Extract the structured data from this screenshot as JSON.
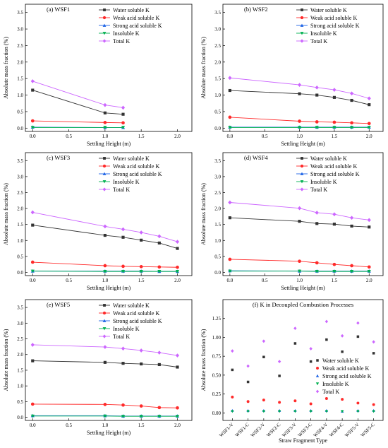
{
  "figure": {
    "panels": [
      {
        "id": "a",
        "title": "(a) WSF1",
        "xlabel": "Settling Height (m)",
        "ylabel": "Absolute mass fraction (%)"
      },
      {
        "id": "b",
        "title": "(b) WSF2",
        "xlabel": "Settling Height (m)",
        "ylabel": "Absolute mass fraction (%)"
      },
      {
        "id": "c",
        "title": "(c) WSF3",
        "xlabel": "Settling Height (m)",
        "ylabel": "Absolute mass fraction (%)"
      },
      {
        "id": "d",
        "title": "(d) WSF4",
        "xlabel": "Settling Height (m)",
        "ylabel": "Absolute mass fraction (%)"
      },
      {
        "id": "e",
        "title": "(e) WSF5",
        "xlabel": "Settling Height (m)",
        "ylabel": "Absolute mass fraction (%)"
      },
      {
        "id": "f",
        "title": "(f) K in Decoupled Combustion Processes",
        "xlabel": "Straw Fragment Type",
        "ylabel": "Absolute mass fraction (%)"
      }
    ]
  },
  "chart_data": [
    {
      "type": "line",
      "title": "(a) WSF1",
      "xlabel": "Settling Height (m)",
      "ylabel": "Absolute mass fraction (%)",
      "xlim": [
        -0.1,
        2.2
      ],
      "ylim": [
        -0.1,
        3.75
      ],
      "xticks": [
        "0.0",
        "0.5",
        "1.0",
        "1.5",
        "2.0"
      ],
      "yticks": [
        "0.0",
        "0.5",
        "1.0",
        "1.5",
        "2.0",
        "2.5",
        "3.0",
        "3.5"
      ],
      "legend": "top-right",
      "grid": false,
      "x": [
        0,
        1.0,
        1.25
      ],
      "series": [
        {
          "name": "Water soluble K",
          "color": "#333333",
          "marker": "square",
          "values": [
            1.15,
            0.46,
            0.42
          ]
        },
        {
          "name": "Weak acid soluble K",
          "color": "#ff2a2a",
          "marker": "circle",
          "values": [
            0.22,
            0.17,
            0.16
          ]
        },
        {
          "name": "Strong acid soluble K",
          "color": "#1e64e6",
          "marker": "triangle-up",
          "values": [
            0.03,
            0.02,
            0.02
          ]
        },
        {
          "name": "Insoluble K",
          "color": "#00b050",
          "marker": "triangle-down",
          "values": [
            0.02,
            0.02,
            0.02
          ]
        },
        {
          "name": "Total K",
          "color": "#cc66ff",
          "marker": "diamond",
          "values": [
            1.42,
            0.7,
            0.62
          ]
        }
      ]
    },
    {
      "type": "line",
      "title": "(b) WSF2",
      "xlabel": "Settling Height (m)",
      "ylabel": "Absolute mass fraction (%)",
      "xlim": [
        -0.1,
        2.2
      ],
      "ylim": [
        -0.1,
        3.75
      ],
      "xticks": [
        "0.0",
        "0.5",
        "1.0",
        "1.5",
        "2.0"
      ],
      "yticks": [
        "0.0",
        "0.5",
        "1.0",
        "1.5",
        "2.0",
        "2.5",
        "3.0",
        "3.5"
      ],
      "legend": "top-right",
      "grid": false,
      "x": [
        0,
        1.0,
        1.25,
        1.5,
        1.75,
        2.0
      ],
      "series": [
        {
          "name": "Water soluble K",
          "color": "#333333",
          "marker": "square",
          "values": [
            1.14,
            1.04,
            1.0,
            0.93,
            0.84,
            0.71
          ]
        },
        {
          "name": "Weak acid soluble K",
          "color": "#ff2a2a",
          "marker": "circle",
          "values": [
            0.33,
            0.21,
            0.19,
            0.18,
            0.16,
            0.14
          ]
        },
        {
          "name": "Strong acid soluble K",
          "color": "#1e64e6",
          "marker": "triangle-up",
          "values": [
            0.03,
            0.03,
            0.03,
            0.03,
            0.03,
            0.03
          ]
        },
        {
          "name": "Insoluble K",
          "color": "#00b050",
          "marker": "triangle-down",
          "values": [
            0.02,
            0.02,
            0.02,
            0.02,
            0.02,
            0.02
          ]
        },
        {
          "name": "Total K",
          "color": "#cc66ff",
          "marker": "diamond",
          "values": [
            1.52,
            1.31,
            1.23,
            1.16,
            1.05,
            0.9
          ]
        }
      ]
    },
    {
      "type": "line",
      "title": "(c) WSF3",
      "xlabel": "Settling Height (m)",
      "ylabel": "Absolute mass fraction (%)",
      "xlim": [
        -0.1,
        2.2
      ],
      "ylim": [
        -0.1,
        3.75
      ],
      "xticks": [
        "0.0",
        "0.5",
        "1.0",
        "1.5",
        "2.0"
      ],
      "yticks": [
        "0.0",
        "0.5",
        "1.0",
        "1.5",
        "2.0",
        "2.5",
        "3.0",
        "3.5"
      ],
      "legend": "top-right",
      "grid": false,
      "x": [
        0,
        1.0,
        1.25,
        1.5,
        1.75,
        2.0
      ],
      "series": [
        {
          "name": "Water soluble K",
          "color": "#333333",
          "marker": "square",
          "values": [
            1.48,
            1.16,
            1.1,
            1.01,
            0.92,
            0.75
          ]
        },
        {
          "name": "Weak acid soluble K",
          "color": "#ff2a2a",
          "marker": "circle",
          "values": [
            0.32,
            0.21,
            0.19,
            0.18,
            0.17,
            0.16
          ]
        },
        {
          "name": "Strong acid soluble K",
          "color": "#1e64e6",
          "marker": "triangle-up",
          "values": [
            0.04,
            0.04,
            0.04,
            0.04,
            0.03,
            0.03
          ]
        },
        {
          "name": "Insoluble K",
          "color": "#00b050",
          "marker": "triangle-down",
          "values": [
            0.04,
            0.03,
            0.03,
            0.03,
            0.03,
            0.03
          ]
        },
        {
          "name": "Total K",
          "color": "#cc66ff",
          "marker": "diamond",
          "values": [
            1.88,
            1.44,
            1.35,
            1.25,
            1.13,
            0.96
          ]
        }
      ]
    },
    {
      "type": "line",
      "title": "(d) WSF4",
      "xlabel": "Settling Height (m)",
      "ylabel": "Absolute mass fraction (%)",
      "xlim": [
        -0.1,
        2.2
      ],
      "ylim": [
        -0.1,
        3.75
      ],
      "xticks": [
        "0.0",
        "0.5",
        "1.0",
        "1.5",
        "2.0"
      ],
      "yticks": [
        "0.0",
        "0.5",
        "1.0",
        "1.5",
        "2.0",
        "2.5",
        "3.0",
        "3.5"
      ],
      "legend": "top-right",
      "grid": false,
      "x": [
        0,
        1.0,
        1.25,
        1.5,
        1.75,
        2.0
      ],
      "series": [
        {
          "name": "Water soluble K",
          "color": "#333333",
          "marker": "square",
          "values": [
            1.71,
            1.6,
            1.53,
            1.51,
            1.45,
            1.42
          ]
        },
        {
          "name": "Weak acid soluble K",
          "color": "#ff2a2a",
          "marker": "circle",
          "values": [
            0.41,
            0.35,
            0.3,
            0.25,
            0.21,
            0.17
          ]
        },
        {
          "name": "Strong acid soluble K",
          "color": "#1e64e6",
          "marker": "triangle-up",
          "values": [
            0.05,
            0.04,
            0.04,
            0.04,
            0.04,
            0.04
          ]
        },
        {
          "name": "Insoluble K",
          "color": "#00b050",
          "marker": "triangle-down",
          "values": [
            0.04,
            0.04,
            0.03,
            0.03,
            0.03,
            0.03
          ]
        },
        {
          "name": "Total K",
          "color": "#cc66ff",
          "marker": "diamond",
          "values": [
            2.19,
            2.01,
            1.87,
            1.82,
            1.71,
            1.64
          ]
        }
      ]
    },
    {
      "type": "line",
      "title": "(e) WSF5",
      "xlabel": "Settling Height (m)",
      "ylabel": "Absolute mass fraction (%)",
      "xlim": [
        -0.1,
        2.2
      ],
      "ylim": [
        -0.1,
        3.75
      ],
      "xticks": [
        "0.0",
        "0.5",
        "1.0",
        "1.5",
        "2.0"
      ],
      "yticks": [
        "0.0",
        "0.5",
        "1.0",
        "1.5",
        "2.0",
        "2.5",
        "3.0",
        "3.5"
      ],
      "legend": "top-right",
      "grid": false,
      "x": [
        0,
        1.0,
        1.25,
        1.5,
        1.75,
        2.0
      ],
      "series": [
        {
          "name": "Water soluble K",
          "color": "#333333",
          "marker": "square",
          "values": [
            1.8,
            1.75,
            1.72,
            1.7,
            1.68,
            1.6
          ]
        },
        {
          "name": "Weak acid soluble K",
          "color": "#ff2a2a",
          "marker": "circle",
          "values": [
            0.42,
            0.41,
            0.39,
            0.36,
            0.31,
            0.3
          ]
        },
        {
          "name": "Strong acid soluble K",
          "color": "#1e64e6",
          "marker": "triangle-up",
          "values": [
            0.05,
            0.05,
            0.04,
            0.04,
            0.04,
            0.04
          ]
        },
        {
          "name": "Insoluble K",
          "color": "#00b050",
          "marker": "triangle-down",
          "values": [
            0.04,
            0.04,
            0.03,
            0.03,
            0.03,
            0.03
          ]
        },
        {
          "name": "Total K",
          "color": "#cc66ff",
          "marker": "diamond",
          "values": [
            2.31,
            2.24,
            2.19,
            2.13,
            2.06,
            1.97
          ]
        }
      ]
    },
    {
      "type": "scatter",
      "title": "(f) K in Decoupled Combustion Processes",
      "xlabel": "Straw Fragment Type",
      "ylabel": "Absolute mass fraction (%)",
      "ylim": [
        -0.1,
        1.5
      ],
      "yticks": [
        "0.00",
        "0.25",
        "0.50",
        "0.75",
        "1.00",
        "1.25"
      ],
      "legend": "bottom-right",
      "grid": false,
      "categories": [
        "WSF1-V",
        "WSF1-C",
        "WSF2-V",
        "WSF2-C",
        "WSF3-V",
        "WSF3-C",
        "WSF4-V",
        "WSF4-C",
        "WSF5-V",
        "WSF5-C"
      ],
      "series": [
        {
          "name": "Water soluble K",
          "color": "#333333",
          "marker": "square",
          "values": [
            0.57,
            0.41,
            0.74,
            0.49,
            0.92,
            0.68,
            0.97,
            0.81,
            1.01,
            0.79
          ]
        },
        {
          "name": "Weak acid soluble K",
          "color": "#ff2a2a",
          "marker": "circle",
          "values": [
            0.21,
            0.15,
            0.17,
            0.14,
            0.16,
            0.12,
            0.19,
            0.18,
            0.13,
            0.11
          ]
        },
        {
          "name": "Strong acid soluble K",
          "color": "#1e64e6",
          "marker": "triangle-up",
          "values": [
            0.03,
            0.03,
            0.03,
            0.03,
            0.03,
            0.03,
            0.03,
            0.02,
            0.03,
            0.03
          ]
        },
        {
          "name": "Insoluble K",
          "color": "#00b050",
          "marker": "triangle-down",
          "values": [
            0.02,
            0.02,
            0.02,
            0.02,
            0.02,
            0.02,
            0.02,
            0.02,
            0.02,
            0.02
          ]
        },
        {
          "name": "Total K",
          "color": "#cc66ff",
          "marker": "diamond",
          "values": [
            0.82,
            0.62,
            0.95,
            0.68,
            1.12,
            0.85,
            1.21,
            1.02,
            1.19,
            0.94
          ]
        }
      ]
    }
  ]
}
